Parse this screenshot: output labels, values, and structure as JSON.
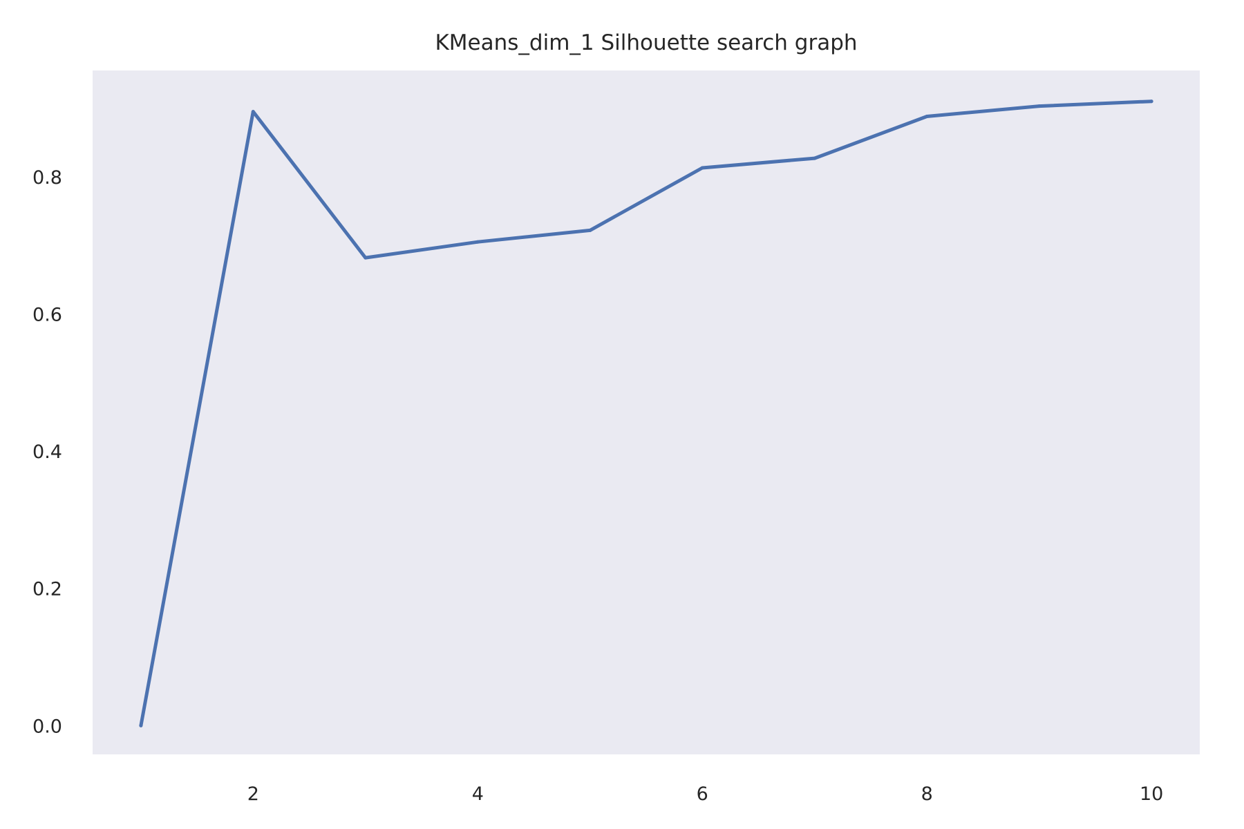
{
  "chart_data": {
    "type": "line",
    "title": "KMeans_dim_1 Silhouette search graph",
    "xlabel": "",
    "ylabel": "",
    "x": [
      1,
      2,
      3,
      4,
      5,
      6,
      7,
      8,
      9,
      10
    ],
    "series": [
      {
        "values": [
          0.0,
          0.895,
          0.682,
          0.705,
          0.722,
          0.813,
          0.827,
          0.888,
          0.903,
          0.91
        ]
      }
    ],
    "xlim": [
      0.57,
      10.43
    ],
    "ylim": [
      -0.042,
      0.955
    ],
    "xticks": [
      2,
      4,
      6,
      8,
      10
    ],
    "yticks": [
      0.0,
      0.2,
      0.4,
      0.6,
      0.8
    ],
    "xtick_labels": [
      "2",
      "4",
      "6",
      "8",
      "10"
    ],
    "ytick_labels": [
      "0.0",
      "0.2",
      "0.4",
      "0.6",
      "0.8"
    ],
    "grid": false,
    "legend": "none",
    "colors": {
      "line": "#4c72b0",
      "plot_background": "#eaeaf2",
      "figure_background": "#ffffff",
      "text": "#262626"
    }
  }
}
